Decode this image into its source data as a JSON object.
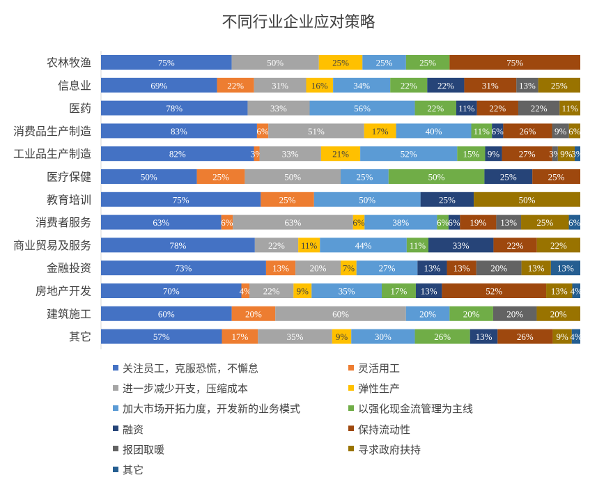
{
  "chart_data": {
    "type": "bar",
    "title": "不同行业企业应对策略",
    "categories": [
      "农林牧渔",
      "信息业",
      "医药",
      "消费品生产制造",
      "工业品生产制造",
      "医疗保健",
      "教育培训",
      "消费者服务",
      "商业贸易及服务",
      "金融投资",
      "房地产开发",
      "建筑施工",
      "其它"
    ],
    "series": [
      {
        "name": "关注员工，克服恐慌，不懈怠",
        "color": "#4472C4",
        "values": [
          75,
          69,
          78,
          83,
          82,
          50,
          75,
          63,
          78,
          73,
          70,
          60,
          57
        ]
      },
      {
        "name": "灵活用工",
        "color": "#ED7D31",
        "values": [
          0,
          22,
          0,
          6,
          3,
          25,
          25,
          6,
          0,
          13,
          4,
          20,
          17
        ]
      },
      {
        "name": "进一步减少开支，压缩成本",
        "color": "#A5A5A5",
        "values": [
          50,
          31,
          33,
          51,
          33,
          50,
          0,
          63,
          22,
          20,
          22,
          60,
          35
        ]
      },
      {
        "name": "弹性生产",
        "color": "#FFC000",
        "values": [
          25,
          16,
          0,
          17,
          21,
          0,
          0,
          6,
          11,
          7,
          9,
          0,
          9
        ]
      },
      {
        "name": "加大市场开拓力度，开发新的业务模式",
        "color": "#5B9BD5",
        "values": [
          25,
          34,
          56,
          40,
          52,
          25,
          50,
          38,
          44,
          27,
          35,
          20,
          30
        ]
      },
      {
        "name": "以强化现金流管理为主线",
        "color": "#70AD47",
        "values": [
          25,
          22,
          22,
          11,
          15,
          50,
          0,
          6,
          11,
          0,
          17,
          20,
          26
        ]
      },
      {
        "name": "融资",
        "color": "#264478",
        "values": [
          0,
          22,
          11,
          6,
          9,
          25,
          25,
          6,
          33,
          13,
          13,
          0,
          13
        ]
      },
      {
        "name": "保持流动性",
        "color": "#9E480E",
        "values": [
          75,
          31,
          22,
          26,
          27,
          25,
          0,
          19,
          22,
          13,
          52,
          0,
          26
        ]
      },
      {
        "name": "报团取暖",
        "color": "#636363",
        "values": [
          0,
          13,
          22,
          9,
          3,
          0,
          0,
          13,
          0,
          20,
          0,
          20,
          0
        ]
      },
      {
        "name": "寻求政府扶持",
        "color": "#997300",
        "values": [
          0,
          25,
          11,
          6,
          9,
          0,
          50,
          25,
          22,
          13,
          13,
          20,
          9
        ]
      },
      {
        "name": "其它",
        "color": "#255E91",
        "values": [
          0,
          0,
          0,
          0,
          3,
          0,
          0,
          6,
          0,
          13,
          4,
          0,
          4
        ]
      }
    ],
    "stacked": true,
    "grid": false,
    "legend_position": "bottom"
  }
}
